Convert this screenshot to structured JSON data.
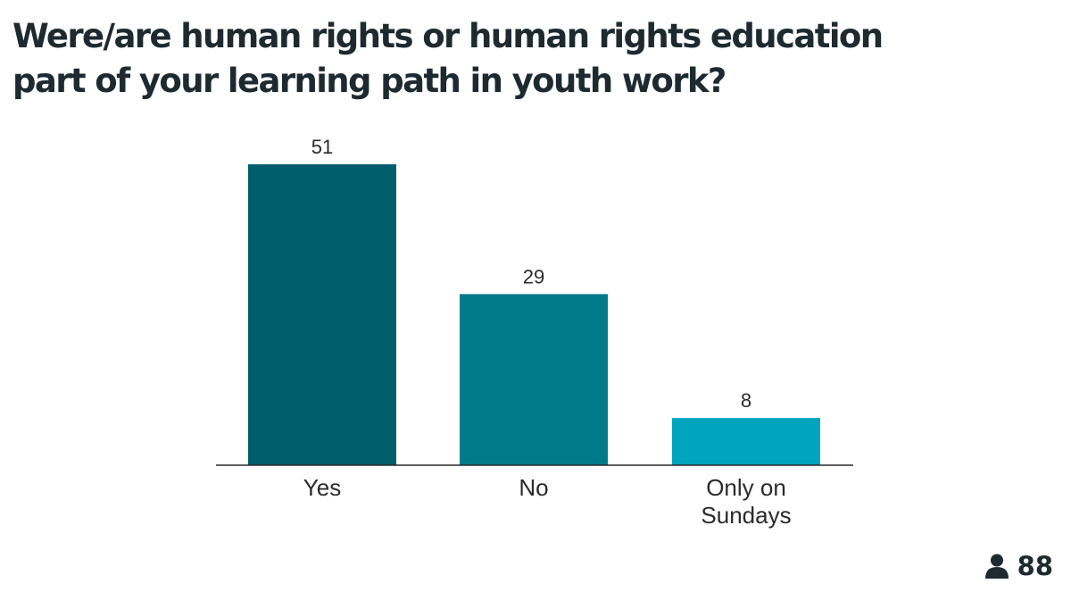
{
  "question": {
    "line1": "Were/are human rights or human rights education",
    "line2": "part of your learning path in youth work?"
  },
  "chart_data": {
    "type": "bar",
    "categories": [
      [
        "Yes"
      ],
      [
        "No"
      ],
      [
        "Only on",
        "Sundays"
      ]
    ],
    "values": [
      51,
      29,
      8
    ],
    "value_labels": [
      "51",
      "29",
      "8"
    ],
    "bar_colors": [
      "#005e6a",
      "#007a88",
      "#00a4bd"
    ],
    "baseline_color": "#2b2b2b",
    "title": "",
    "xlabel": "",
    "ylabel": "",
    "ylim": [
      0,
      51
    ],
    "grid": false
  },
  "respondents": {
    "icon": "person-icon",
    "count": "88"
  }
}
